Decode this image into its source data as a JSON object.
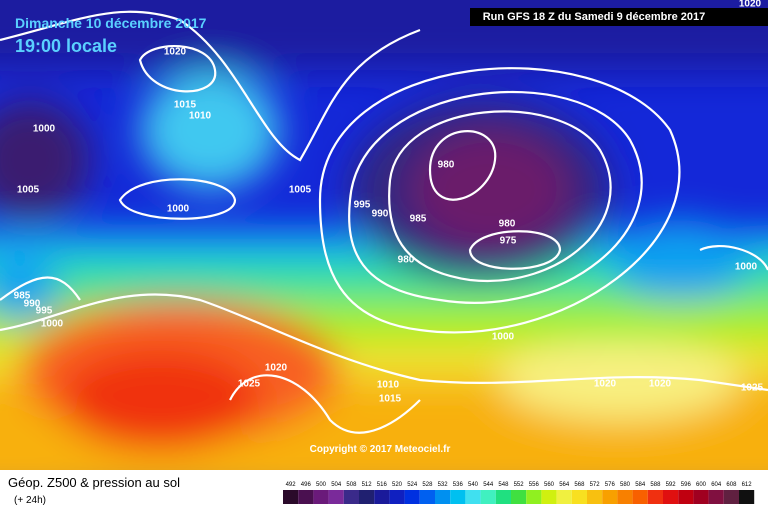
{
  "header": {
    "date": "Dimanche 10 décembre 2017",
    "time": "19:00 locale",
    "run": "Run GFS 18 Z du Samedi 9 décembre 2017"
  },
  "isobar_labels": [
    1020,
    1020,
    1015,
    1010,
    1000,
    1005,
    1000,
    1005,
    995,
    990,
    985,
    980,
    980,
    975,
    980,
    985,
    990,
    995,
    1000,
    1000,
    1025,
    1020,
    1010,
    1015,
    1020,
    1020,
    1025,
    1000
  ],
  "copyright": "Copyright © 2017 Meteociel.fr",
  "footer": {
    "title": "Géop. Z500 & pression au sol",
    "lead": "(+ 24h)"
  },
  "legend": {
    "values": [
      492,
      496,
      500,
      504,
      508,
      512,
      516,
      520,
      524,
      528,
      532,
      536,
      540,
      544,
      548,
      552,
      556,
      560,
      564,
      568,
      572,
      576,
      580,
      584,
      588,
      592,
      596,
      600,
      604,
      608,
      612
    ],
    "colors": [
      "#2a0a2a",
      "#4a1050",
      "#6a1a7a",
      "#7a2a9a",
      "#3a2a8a",
      "#202070",
      "#1a1a9a",
      "#1020c0",
      "#0030e0",
      "#0060f0",
      "#0090f0",
      "#00c0f0",
      "#40e0f0",
      "#40f0c0",
      "#20e080",
      "#40e040",
      "#90f020",
      "#d0f010",
      "#f0f040",
      "#f8e020",
      "#f8c010",
      "#f8a000",
      "#f88000",
      "#f86000",
      "#f03010",
      "#e01010",
      "#c00010",
      "#a00020",
      "#801040",
      "#602040",
      "#101010"
    ]
  }
}
